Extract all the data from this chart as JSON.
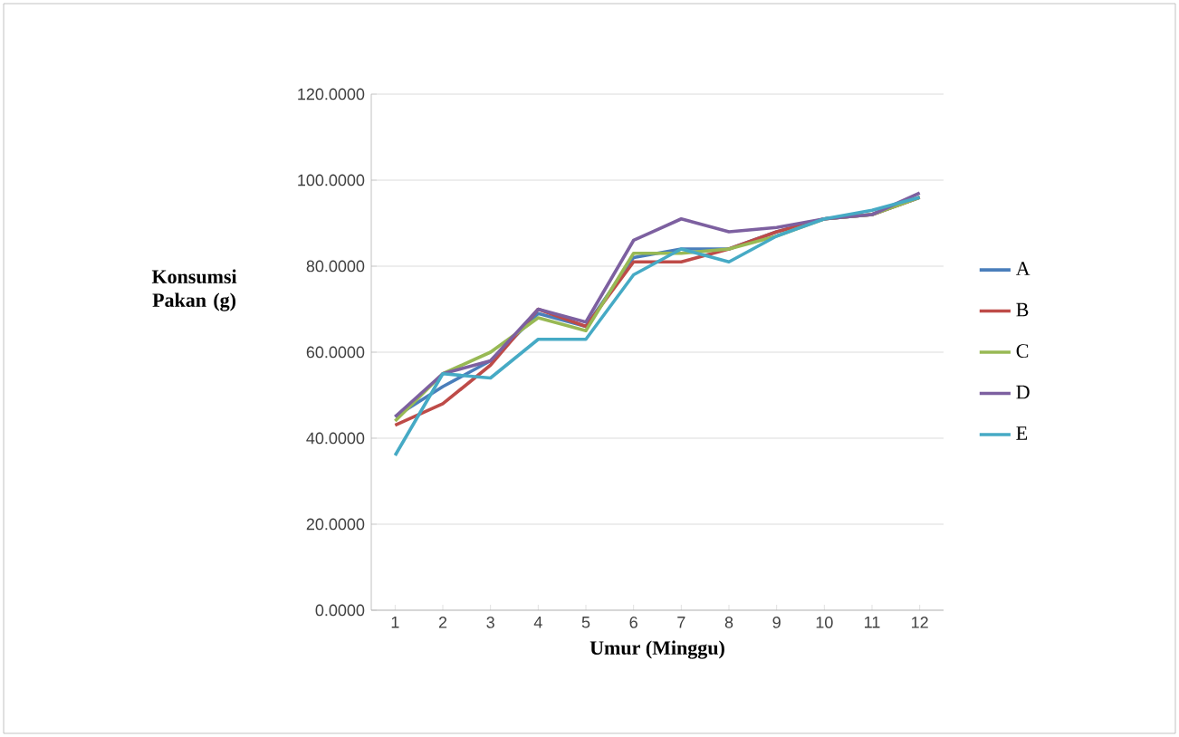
{
  "chart_data": {
    "type": "line",
    "xlabel": "Umur (Minggu)",
    "ylabel": "Konsumsi Pakan (g)",
    "categories": [
      "1",
      "2",
      "3",
      "4",
      "5",
      "6",
      "7",
      "8",
      "9",
      "10",
      "11",
      "12"
    ],
    "series": [
      {
        "name": "A",
        "color": "#4a7ebb",
        "values": [
          45,
          52,
          58,
          69,
          66,
          82,
          84,
          84,
          88,
          91,
          92,
          96
        ]
      },
      {
        "name": "B",
        "color": "#be4b48",
        "values": [
          43,
          48,
          57,
          70,
          66,
          81,
          81,
          84,
          88,
          91,
          92,
          96
        ]
      },
      {
        "name": "C",
        "color": "#98b954",
        "values": [
          44,
          55,
          60,
          68,
          65,
          83,
          83,
          84,
          87,
          91,
          92,
          96
        ]
      },
      {
        "name": "D",
        "color": "#7d60a0",
        "values": [
          45,
          55,
          58,
          70,
          67,
          86,
          91,
          88,
          89,
          91,
          92,
          97
        ]
      },
      {
        "name": "E",
        "color": "#46aac5",
        "values": [
          36,
          55,
          54,
          63,
          63,
          78,
          84,
          81,
          87,
          91,
          93,
          96
        ]
      }
    ],
    "ylim": [
      0,
      120
    ],
    "yticks": [
      {
        "value": 0,
        "label": "0.0000"
      },
      {
        "value": 20,
        "label": "20.0000"
      },
      {
        "value": 40,
        "label": "40.0000"
      },
      {
        "value": 60,
        "label": "60.0000"
      },
      {
        "value": 80,
        "label": "80.0000"
      },
      {
        "value": 100,
        "label": "100.0000"
      },
      {
        "value": 120,
        "label": "120.0000"
      }
    ],
    "grid": "y",
    "legend": "right",
    "marker": "none",
    "line_style": "solid"
  }
}
